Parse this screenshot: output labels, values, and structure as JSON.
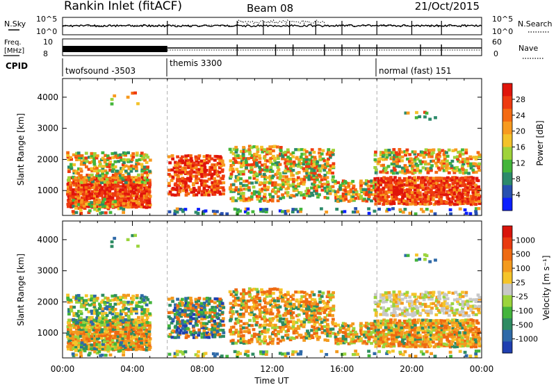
{
  "header": {
    "station": "Rankin Inlet (fitACF)",
    "beam": "Beam 08",
    "date": "21/Oct/2015"
  },
  "top_panels": {
    "nsky_label": "N.Sky",
    "nsearch_label": "N.Search",
    "nsky_ticks": [
      "10^5",
      "10^0"
    ],
    "nsearch_ticks": [
      "10^5",
      "10^0"
    ],
    "freq_label_1": "Freq.",
    "freq_label_2": "[MHz]",
    "freq_ticks": [
      "10",
      "8"
    ],
    "nave_label": "Nave",
    "nave_ticks": [
      "60",
      "0"
    ],
    "cpid_label": "CPID",
    "cpid_segments": [
      {
        "label": "twofsound -3503",
        "start": 0,
        "end": 6
      },
      {
        "label": "themis 3300",
        "start": 6,
        "end": 18
      },
      {
        "label": "normal (fast) 151",
        "start": 18,
        "end": 24
      }
    ]
  },
  "chart_data": [
    {
      "type": "heatmap",
      "quantity": "Power",
      "ylabel": "Slant Range [km]",
      "xlabel": "Time UT",
      "xlim": [
        0,
        24
      ],
      "ylim": [
        200,
        4600
      ],
      "yticks": [
        "1000",
        "2000",
        "3000",
        "4000"
      ],
      "colorbar": {
        "label": "Power [dB]",
        "tick_labels": [
          "28",
          "24",
          "20",
          "16",
          "12",
          "8",
          "4"
        ],
        "colors": [
          "#0b1fff",
          "#2750b0",
          "#2c8a6a",
          "#43b53a",
          "#9fd33a",
          "#f3c22a",
          "#f79a1f",
          "#f46a12",
          "#ee3a10",
          "#e0150b"
        ]
      }
    },
    {
      "type": "heatmap",
      "quantity": "Velocity",
      "ylabel": "Slant Range [km]",
      "xlabel": "Time UT",
      "xlim": [
        0,
        24
      ],
      "ylim": [
        200,
        4600
      ],
      "yticks": [
        "1000",
        "2000",
        "3000",
        "4000"
      ],
      "xtick_labels": [
        "00:00",
        "04:00",
        "08:00",
        "12:00",
        "16:00",
        "20:00",
        "00:00"
      ],
      "colorbar": {
        "label": "Velocity [m s⁻¹]",
        "tick_labels": [
          "1000",
          "500",
          "100",
          "25",
          "-25",
          "-100",
          "-500",
          "-1000"
        ],
        "colors": [
          "#1f3fb0",
          "#2f6aa8",
          "#2e8b62",
          "#43b43c",
          "#9bd43c",
          "#c8c8c8",
          "#f5c42a",
          "#f39a1e",
          "#ee6a12",
          "#e93a10",
          "#d9140b"
        ]
      }
    }
  ]
}
